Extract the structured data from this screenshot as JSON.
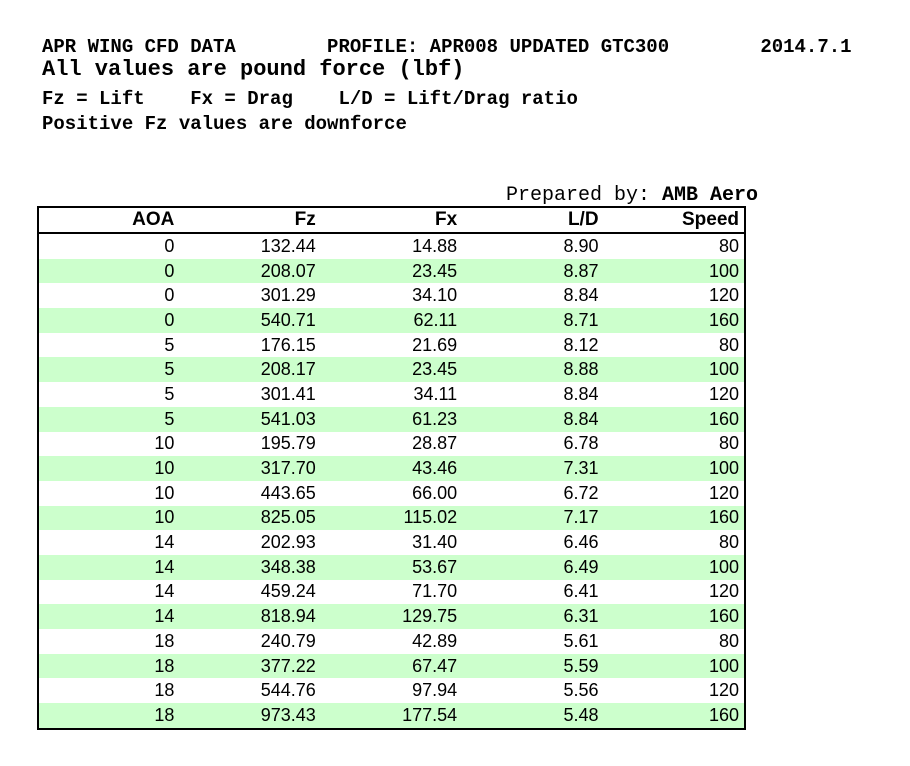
{
  "header": {
    "line1": "APR WING CFD DATA        PROFILE: APR008 UPDATED GTC300        2014.7.1",
    "line2": "All values are pound force (lbf)",
    "line3": "Fz = Lift    Fx = Drag    L/D = Lift/Drag ratio",
    "line4": "Positive Fz values are downforce"
  },
  "prepared_by": {
    "label": "Prepared by: ",
    "value": "AMB Aero"
  },
  "table": {
    "columns": [
      "AOA",
      "Fz",
      "Fx",
      "L/D",
      "Speed"
    ],
    "rows": [
      [
        "0",
        "132.44",
        "14.88",
        "8.90",
        "80"
      ],
      [
        "0",
        "208.07",
        "23.45",
        "8.87",
        "100"
      ],
      [
        "0",
        "301.29",
        "34.10",
        "8.84",
        "120"
      ],
      [
        "0",
        "540.71",
        "62.11",
        "8.71",
        "160"
      ],
      [
        "5",
        "176.15",
        "21.69",
        "8.12",
        "80"
      ],
      [
        "5",
        "208.17",
        "23.45",
        "8.88",
        "100"
      ],
      [
        "5",
        "301.41",
        "34.11",
        "8.84",
        "120"
      ],
      [
        "5",
        "541.03",
        "61.23",
        "8.84",
        "160"
      ],
      [
        "10",
        "195.79",
        "28.87",
        "6.78",
        "80"
      ],
      [
        "10",
        "317.70",
        "43.46",
        "7.31",
        "100"
      ],
      [
        "10",
        "443.65",
        "66.00",
        "6.72",
        "120"
      ],
      [
        "10",
        "825.05",
        "115.02",
        "7.17",
        "160"
      ],
      [
        "14",
        "202.93",
        "31.40",
        "6.46",
        "80"
      ],
      [
        "14",
        "348.38",
        "53.67",
        "6.49",
        "100"
      ],
      [
        "14",
        "459.24",
        "71.70",
        "6.41",
        "120"
      ],
      [
        "14",
        "818.94",
        "129.75",
        "6.31",
        "160"
      ],
      [
        "18",
        "240.79",
        "42.89",
        "5.61",
        "80"
      ],
      [
        "18",
        "377.22",
        "67.47",
        "5.59",
        "100"
      ],
      [
        "18",
        "544.76",
        "97.94",
        "5.56",
        "120"
      ],
      [
        "18",
        "973.43",
        "177.54",
        "5.48",
        "160"
      ]
    ]
  },
  "colors": {
    "row_alt_green": "#CCFFCC",
    "border": "#000000",
    "text": "#000000",
    "background": "#FFFFFF"
  }
}
